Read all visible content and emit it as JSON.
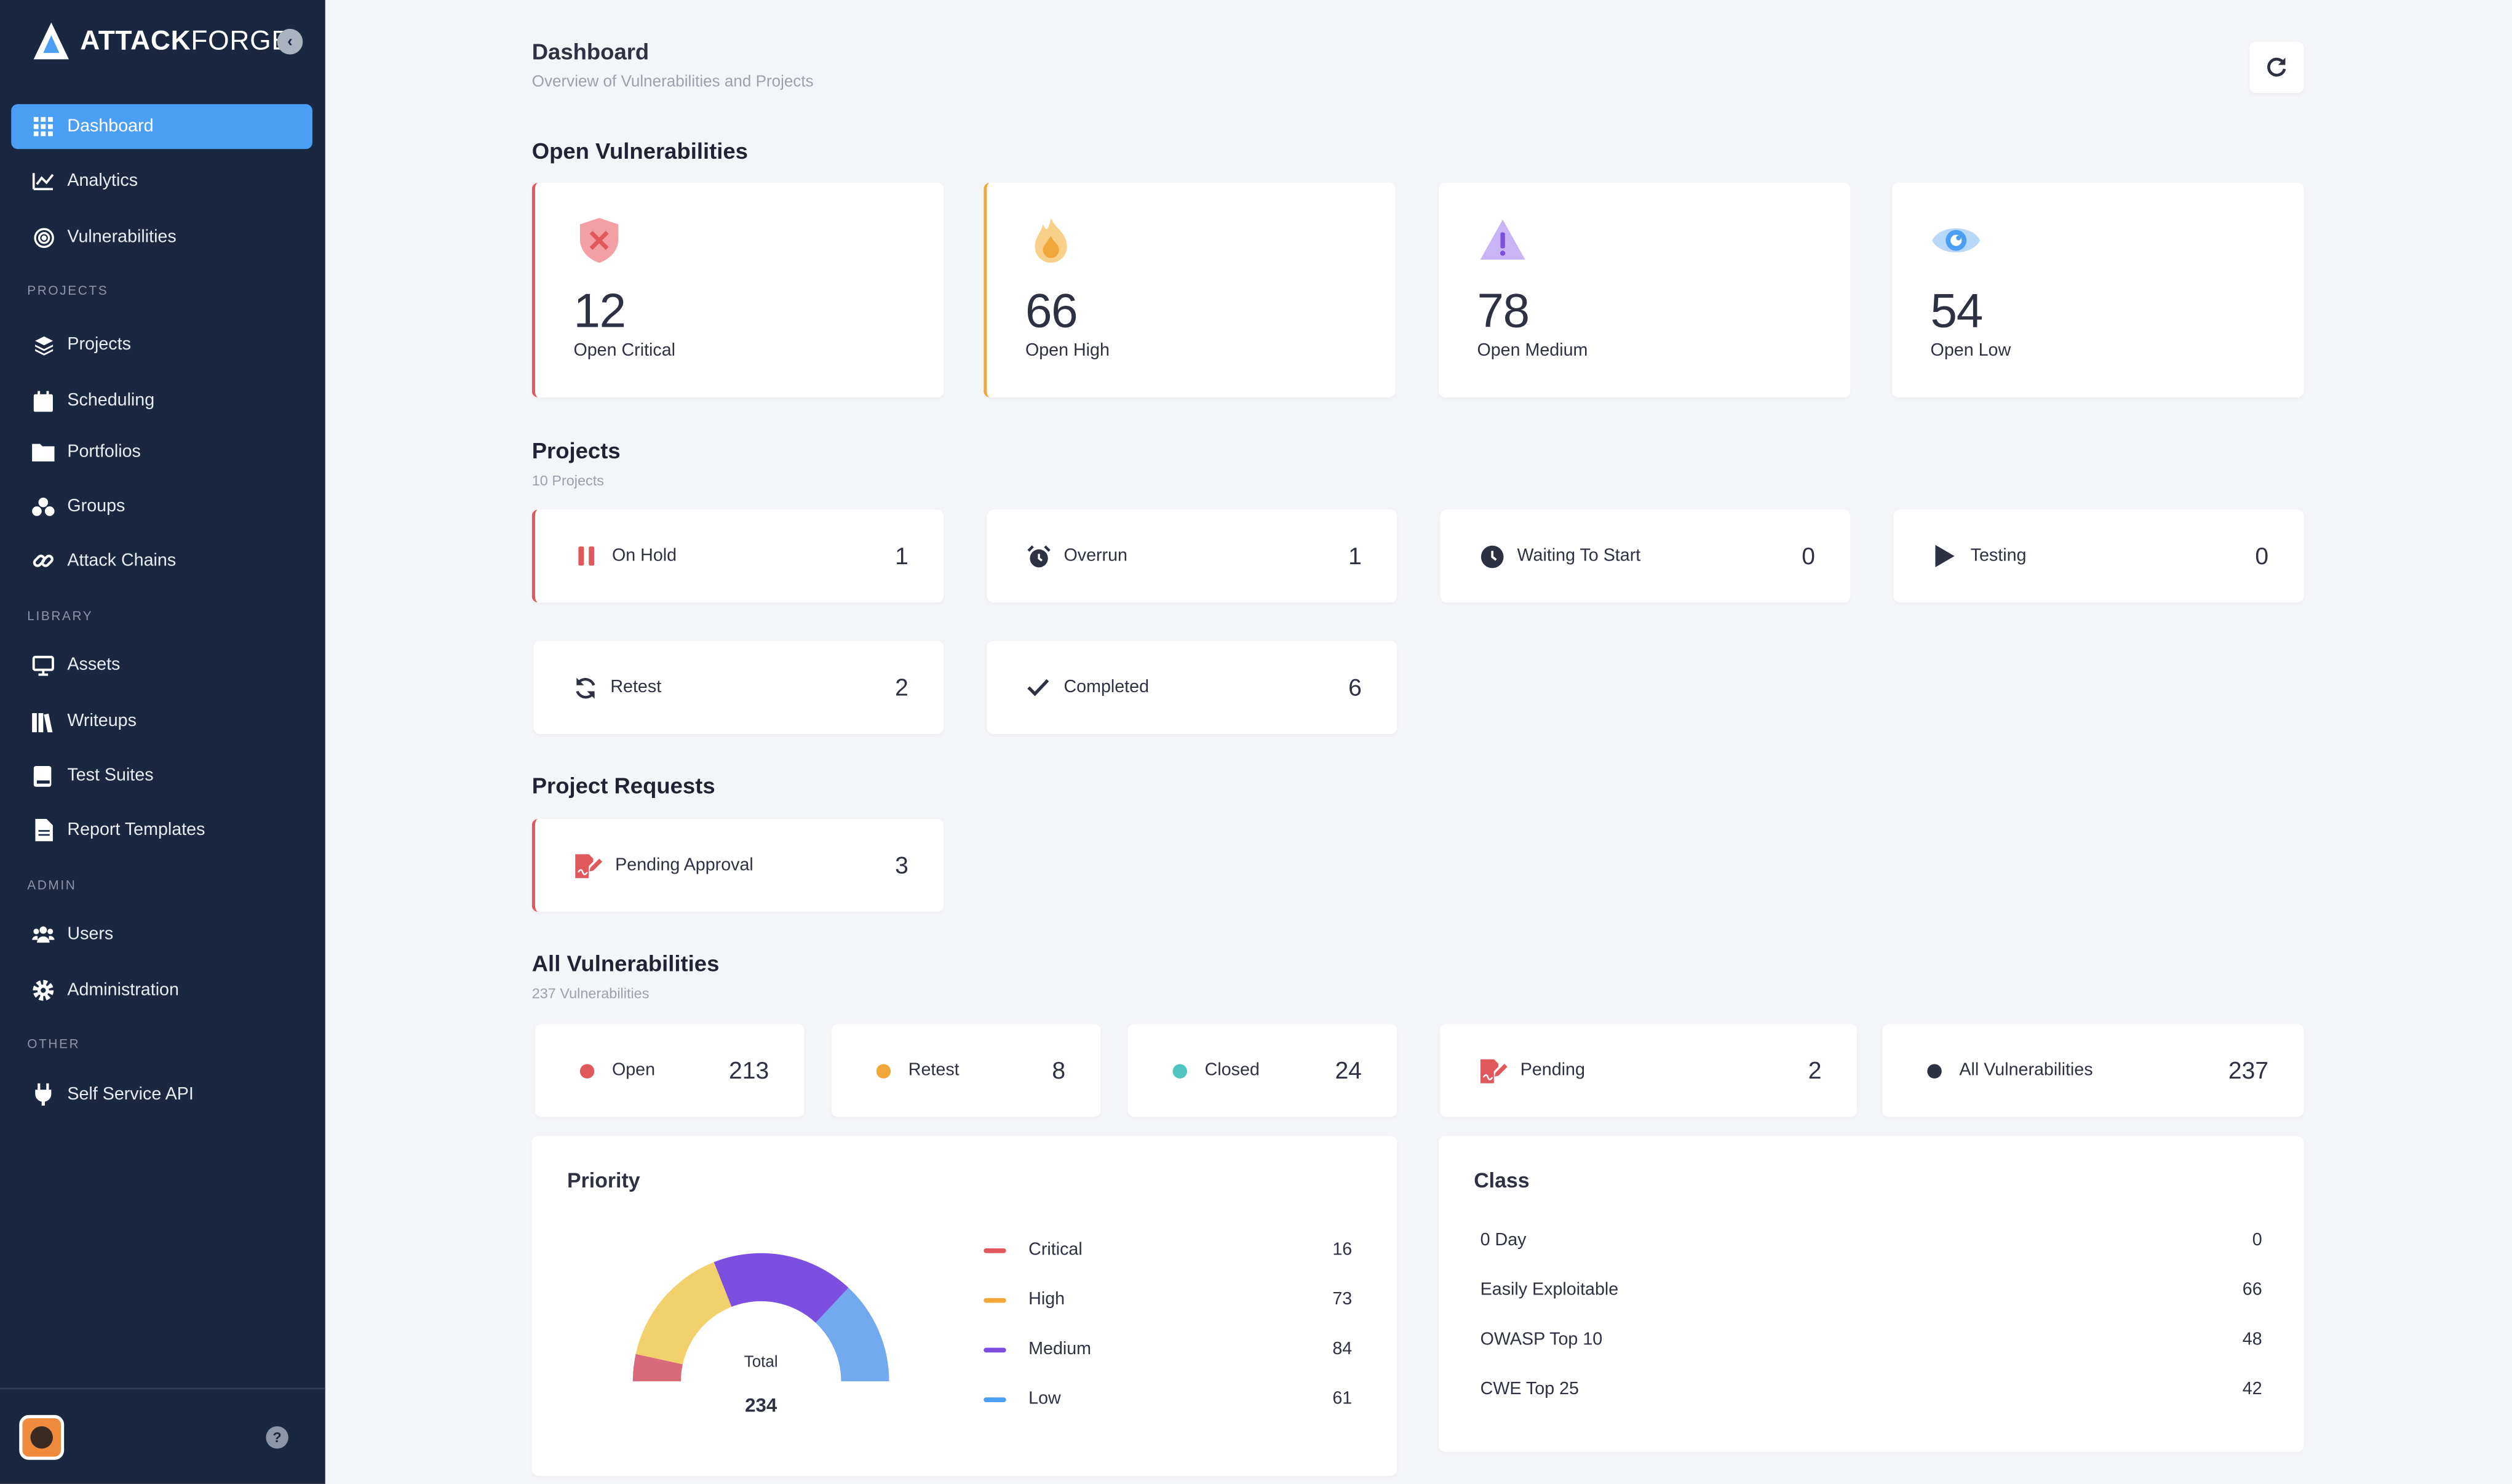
{
  "app": {
    "logo_text_bold": "ATTACK",
    "logo_text_light": "FORGE"
  },
  "sidebar": {
    "items_top": [
      {
        "label": "Dashboard",
        "icon": "grid-icon",
        "active": true
      },
      {
        "label": "Analytics",
        "icon": "chart-icon"
      },
      {
        "label": "Vulnerabilities",
        "icon": "target-icon"
      }
    ],
    "sections": {
      "projects": "PROJECTS",
      "library": "LIBRARY",
      "admin": "ADMIN",
      "other": "OTHER"
    },
    "items_projects": [
      {
        "label": "Projects",
        "icon": "layers-icon"
      },
      {
        "label": "Scheduling",
        "icon": "calendar-icon"
      },
      {
        "label": "Portfolios",
        "icon": "folder-icon"
      },
      {
        "label": "Groups",
        "icon": "groups-icon"
      },
      {
        "label": "Attack Chains",
        "icon": "link-icon"
      }
    ],
    "items_library": [
      {
        "label": "Assets",
        "icon": "monitor-icon"
      },
      {
        "label": "Writeups",
        "icon": "books-icon"
      },
      {
        "label": "Test Suites",
        "icon": "book-icon"
      },
      {
        "label": "Report Templates",
        "icon": "file-icon"
      }
    ],
    "items_admin": [
      {
        "label": "Users",
        "icon": "users-icon"
      },
      {
        "label": "Administration",
        "icon": "gear-icon"
      }
    ],
    "items_other": [
      {
        "label": "Self Service API",
        "icon": "plug-icon"
      }
    ]
  },
  "header": {
    "title": "Dashboard",
    "subtitle": "Overview of Vulnerabilities and Projects"
  },
  "open_vulnerabilities": {
    "title": "Open Vulnerabilities",
    "cards": [
      {
        "value": "12",
        "label": "Open Critical",
        "icon": "shield-x-icon",
        "color": "#e0575c"
      },
      {
        "value": "66",
        "label": "Open High",
        "icon": "flame-icon",
        "color": "#f2a73b"
      },
      {
        "value": "78",
        "label": "Open Medium",
        "icon": "warning-icon",
        "color": "#8f6ee8"
      },
      {
        "value": "54",
        "label": "Open Low",
        "icon": "eye-icon",
        "color": "#5aa2ea"
      }
    ]
  },
  "projects": {
    "title": "Projects",
    "subtitle": "10 Projects",
    "cards": [
      {
        "label": "On Hold",
        "value": "1",
        "icon": "pause-icon"
      },
      {
        "label": "Overrun",
        "value": "1",
        "icon": "alarm-icon"
      },
      {
        "label": "Waiting To Start",
        "value": "0",
        "icon": "clock-icon"
      },
      {
        "label": "Testing",
        "value": "0",
        "icon": "play-icon"
      },
      {
        "label": "Retest",
        "value": "2",
        "icon": "sync-icon"
      },
      {
        "label": "Completed",
        "value": "6",
        "icon": "check-icon"
      }
    ]
  },
  "project_requests": {
    "title": "Project Requests",
    "cards": [
      {
        "label": "Pending Approval",
        "value": "3",
        "icon": "signature-icon"
      }
    ]
  },
  "all_vulnerabilities": {
    "title": "All Vulnerabilities",
    "subtitle": "237 Vulnerabilities",
    "cards": [
      {
        "label": "Open",
        "value": "213",
        "color": "#e0575c"
      },
      {
        "label": "Retest",
        "value": "8",
        "color": "#f2a73b"
      },
      {
        "label": "Closed",
        "value": "24",
        "color": "#4fc4c0"
      },
      {
        "label": "Pending",
        "value": "2",
        "icon": "signature-icon"
      },
      {
        "label": "All Vulnerabilities",
        "value": "237",
        "color": "#2d3142"
      }
    ]
  },
  "priority": {
    "title": "Priority",
    "total_label": "Total",
    "total_value": "234",
    "legend": [
      {
        "label": "Critical",
        "value": "16",
        "color": "#e0575c"
      },
      {
        "label": "High",
        "value": "73",
        "color": "#f2a73b"
      },
      {
        "label": "Medium",
        "value": "84",
        "color": "#7d4fe0"
      },
      {
        "label": "Low",
        "value": "61",
        "color": "#4a9ff5"
      }
    ]
  },
  "chart_data": {
    "type": "pie",
    "categories": [
      "Critical",
      "High",
      "Medium",
      "Low"
    ],
    "values": [
      16,
      73,
      84,
      61
    ],
    "colors": [
      "#d86a7a",
      "#f2d06b",
      "#7d4fe0",
      "#73a9ee"
    ],
    "title": "Priority"
  },
  "class": {
    "title": "Class",
    "rows": [
      {
        "label": "0 Day",
        "value": "0"
      },
      {
        "label": "Easily Exploitable",
        "value": "66"
      },
      {
        "label": "OWASP Top 10",
        "value": "48"
      },
      {
        "label": "CWE Top 25",
        "value": "42"
      }
    ]
  }
}
